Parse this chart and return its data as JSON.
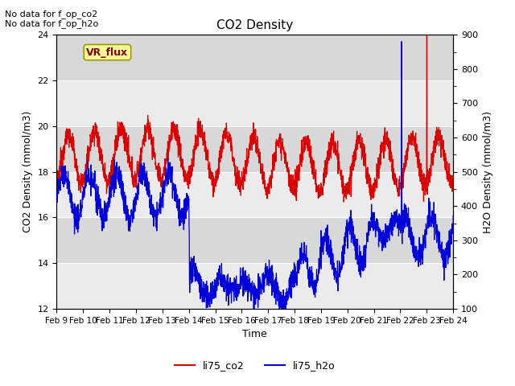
{
  "title": "CO2 Density",
  "xlabel": "Time",
  "ylabel_left": "CO2 Density (mmol/m3)",
  "ylabel_right": "H2O Density (mmol/m3)",
  "ylim_left": [
    12,
    24
  ],
  "ylim_right": [
    100,
    900
  ],
  "yticks_left": [
    12,
    14,
    16,
    18,
    20,
    22,
    24
  ],
  "yticks_right": [
    100,
    200,
    300,
    400,
    500,
    600,
    700,
    800,
    900
  ],
  "xtick_labels": [
    "Feb 9",
    "Feb 10",
    "Feb 11",
    "Feb 12",
    "Feb 13",
    "Feb 14",
    "Feb 15",
    "Feb 16",
    "Feb 17",
    "Feb 18",
    "Feb 19",
    "Feb 20",
    "Feb 21",
    "Feb 22",
    "Feb 23",
    "Feb 24"
  ],
  "no_data_text1": "No data for f_op_co2",
  "no_data_text2": "No data for f_op_h2o",
  "vr_flux_label": "VR_flux",
  "legend_label_co2": "li75_co2",
  "legend_label_h2o": "li75_h2o",
  "color_co2": "#dd0000",
  "color_h2o": "#0000dd",
  "bg_color_light": "#ebebeb",
  "bg_color_dark": "#d8d8d8",
  "fig_bg": "#ffffff",
  "vr_box_color": "#ffff99",
  "vr_box_edge": "#999900"
}
